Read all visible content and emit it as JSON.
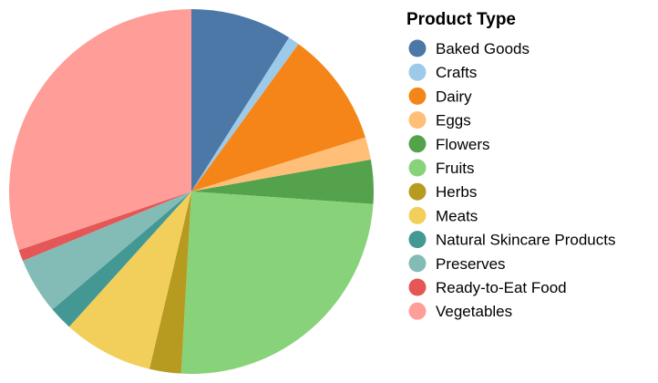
{
  "chart_data": {
    "type": "pie",
    "legend": {
      "title": "Product Type",
      "position": "right"
    },
    "series": [
      {
        "name": "Baked Goods",
        "value": 9.0,
        "color": "#4c78a8"
      },
      {
        "name": "Crafts",
        "value": 1.0,
        "color": "#9ecae9"
      },
      {
        "name": "Dairy",
        "value": 10.2,
        "color": "#f58518"
      },
      {
        "name": "Eggs",
        "value": 2.0,
        "color": "#ffbf79"
      },
      {
        "name": "Flowers",
        "value": 3.9,
        "color": "#54a24b"
      },
      {
        "name": "Fruits",
        "value": 24.8,
        "color": "#88d27a"
      },
      {
        "name": "Herbs",
        "value": 2.8,
        "color": "#b79a20"
      },
      {
        "name": "Meats",
        "value": 8.0,
        "color": "#f2cf5b"
      },
      {
        "name": "Natural Skincare Products",
        "value": 2.1,
        "color": "#439894"
      },
      {
        "name": "Preserves",
        "value": 5.0,
        "color": "#83bcb6"
      },
      {
        "name": "Ready-to-Eat Food",
        "value": 1.0,
        "color": "#e45756"
      },
      {
        "name": "Vegetables",
        "value": 30.2,
        "color": "#ff9d98"
      }
    ]
  }
}
